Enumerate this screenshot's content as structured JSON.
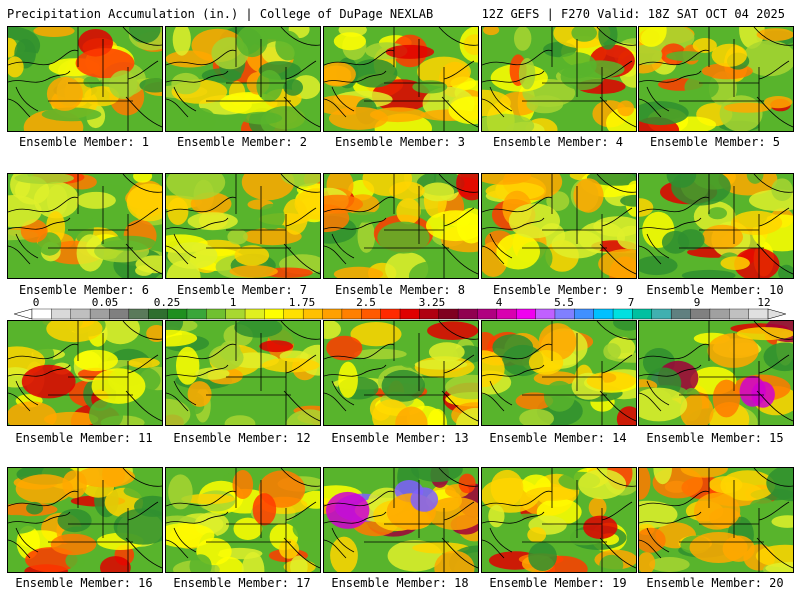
{
  "header": {
    "left": "Precipitation Accumulation (in.) | College of DuPage NEXLAB",
    "right": "12Z GEFS | F270 Valid: 18Z SAT OCT 04 2025"
  },
  "member_label_prefix": "Ensemble Member: ",
  "members": [
    1,
    2,
    3,
    4,
    5,
    6,
    7,
    8,
    9,
    10,
    11,
    12,
    13,
    14,
    15,
    16,
    17,
    18,
    19,
    20
  ],
  "colorbar": {
    "ticks": [
      "0",
      "0.05",
      "0.25",
      "1",
      "1.75",
      "2.5",
      "3.25",
      "4",
      "5.5",
      "7",
      "9",
      "12"
    ],
    "colors": [
      "#ffffff",
      "#d9d9d9",
      "#bfbfbf",
      "#a0a0a0",
      "#808080",
      "#5a7a5a",
      "#2f6f2f",
      "#1f8f1f",
      "#3aa63a",
      "#70c030",
      "#a8d830",
      "#e0f020",
      "#ffff00",
      "#ffe000",
      "#ffc000",
      "#ffa000",
      "#ff8000",
      "#ff5a00",
      "#ff2a00",
      "#e00000",
      "#b00010",
      "#800020",
      "#900050",
      "#b00080",
      "#d800b0",
      "#f000f0",
      "#c060ff",
      "#8080ff",
      "#4090ff",
      "#00c0ff",
      "#00e0e0",
      "#00c0a0",
      "#40b0b0",
      "#608080",
      "#808080",
      "#a0a0a0",
      "#c0c0c0",
      "#e0e0e0"
    ]
  },
  "map": {
    "land_colors": [
      "#2f8f2f",
      "#58b42c",
      "#a7d531",
      "#dff02b",
      "#ffff00",
      "#ffd500",
      "#ffa800",
      "#ff7a00",
      "#ff3b00",
      "#e00000",
      "#a0003a",
      "#d000d0",
      "#8060ff"
    ]
  }
}
